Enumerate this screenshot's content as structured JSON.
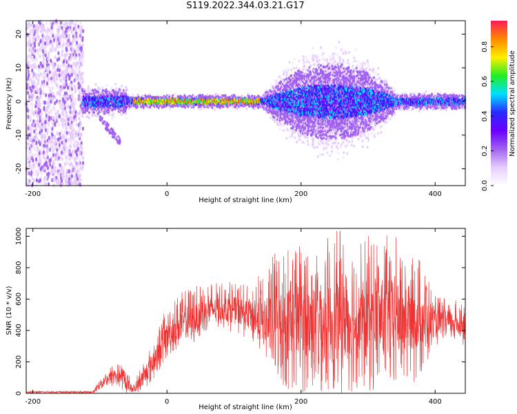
{
  "title": "S119.2022.344.03.21.G17",
  "colors": {
    "snr_line": "#ee3333",
    "axis": "#000000",
    "colormap": [
      "#ffffff",
      "#e6ccff",
      "#a060f0",
      "#6a00ff",
      "#2a2aff",
      "#00e0ff",
      "#22ee22",
      "#ffee00",
      "#ff8800",
      "#ff1a55"
    ]
  },
  "chart_data": [
    {
      "type": "heatmap",
      "name": "spectrogram",
      "xlabel": "Height of straight line (km)",
      "ylabel": "Frequency (Hz)",
      "xlim": [
        -210,
        445
      ],
      "ylim": [
        -25,
        24
      ],
      "xticks": [
        -200,
        0,
        200,
        400
      ],
      "yticks": [
        -20,
        -10,
        0,
        10,
        20
      ],
      "colorbar": {
        "label": "Normalized spectral amplitude",
        "range": [
          0,
          0.95
        ],
        "ticks": [
          "0.0",
          "0.2",
          "0.4",
          "0.6",
          "0.8"
        ],
        "tick_values": [
          0,
          0.2,
          0.4,
          0.6,
          0.8
        ]
      },
      "features": {
        "noise_region_km": [
          -210,
          -125
        ],
        "signal_center_hz": 0,
        "strong_band_km": [
          -50,
          150
        ],
        "spread_region_km": [
          150,
          340
        ],
        "max_spread_hz": 15,
        "tail_feature": {
          "start_km": -100,
          "end_km": -70,
          "freq_hz": [
            -5,
            -12
          ]
        }
      }
    },
    {
      "type": "line",
      "name": "snr",
      "xlabel": "Height of straight line (km)",
      "ylabel": "SNR (10 * v/v)",
      "xlim": [
        -210,
        445
      ],
      "ylim": [
        0,
        1050
      ],
      "xticks": [
        -200,
        0,
        200,
        400
      ],
      "yticks": [
        0,
        200,
        400,
        600,
        800,
        1000
      ],
      "envelope": {
        "x": [
          -210,
          -110,
          -100,
          -80,
          -70,
          -60,
          -50,
          -40,
          -20,
          0,
          20,
          40,
          60,
          80,
          100,
          120,
          140,
          160,
          180,
          200,
          220,
          240,
          260,
          280,
          300,
          320,
          340,
          360,
          380,
          400,
          420,
          445
        ],
        "upper": [
          15,
          15,
          100,
          190,
          190,
          160,
          60,
          170,
          340,
          560,
          640,
          690,
          710,
          700,
          720,
          700,
          760,
          900,
          960,
          1010,
          950,
          1000,
          1050,
          970,
          1010,
          1000,
          1020,
          860,
          880,
          620,
          610,
          580
        ],
        "lower": [
          0,
          0,
          20,
          40,
          30,
          0,
          0,
          0,
          80,
          220,
          300,
          300,
          400,
          420,
          380,
          350,
          250,
          100,
          0,
          0,
          0,
          0,
          0,
          0,
          0,
          0,
          0,
          20,
          100,
          300,
          320,
          300
        ],
        "mean": [
          8,
          8,
          60,
          120,
          110,
          60,
          20,
          70,
          200,
          360,
          430,
          460,
          520,
          540,
          530,
          500,
          450,
          430,
          450,
          450,
          450,
          450,
          460,
          460,
          470,
          480,
          490,
          480,
          480,
          450,
          450,
          440
        ]
      }
    }
  ]
}
